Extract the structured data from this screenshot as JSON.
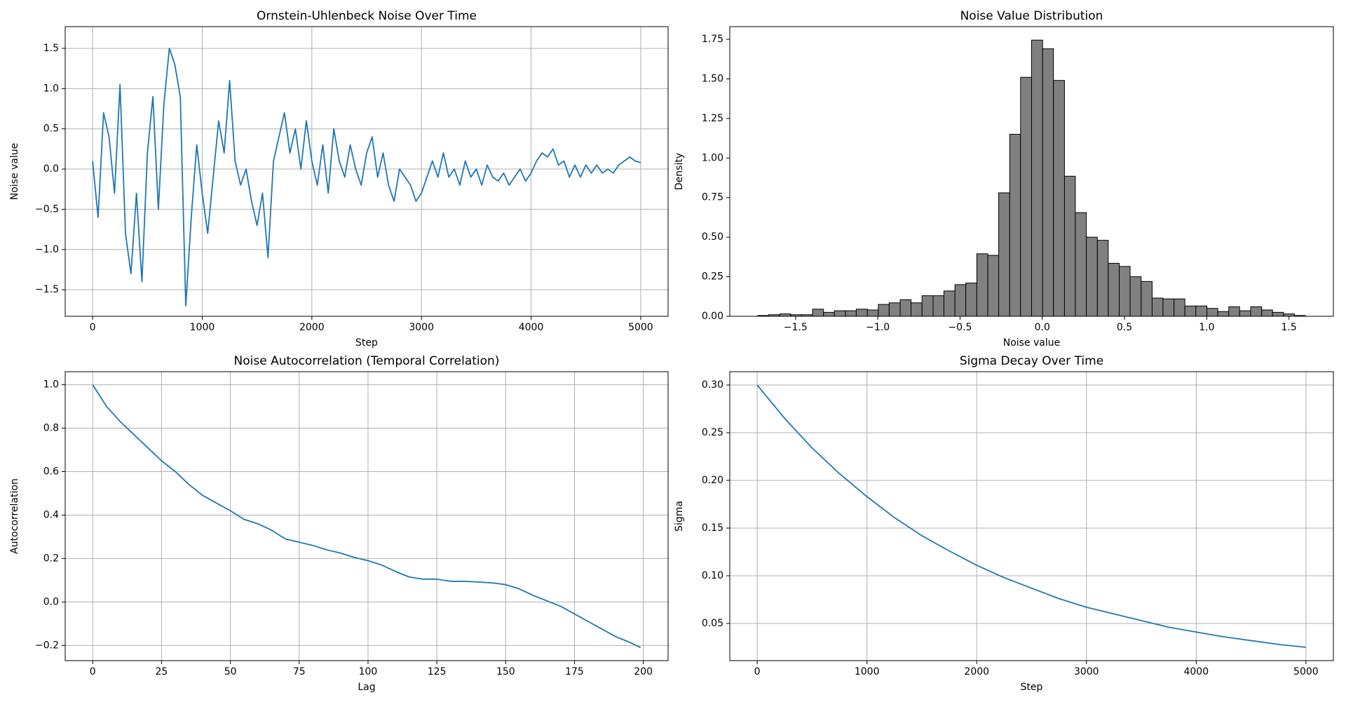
{
  "chart_data": [
    {
      "type": "line",
      "title": "Ornstein-Uhlenbeck Noise Over Time",
      "x_label": "Step",
      "y_label": "Noise value",
      "grid": true,
      "xlim": [
        -250,
        5250
      ],
      "ylim": [
        -1.83,
        1.77
      ],
      "xticks": [
        0,
        1000,
        2000,
        3000,
        4000,
        5000
      ],
      "yticks": [
        {
          "value": -1.5,
          "label": "−1.5"
        },
        {
          "value": -1.0,
          "label": "−1.0"
        },
        {
          "value": -0.5,
          "label": "−0.5"
        },
        {
          "value": 0,
          "label": "0.0"
        },
        0.5,
        {
          "value": 1.0,
          "label": "1.0"
        },
        1.5
      ],
      "x": [
        0,
        50,
        100,
        150,
        200,
        250,
        300,
        350,
        400,
        450,
        500,
        550,
        600,
        650,
        700,
        750,
        800,
        850,
        900,
        950,
        1000,
        1050,
        1100,
        1150,
        1200,
        1250,
        1300,
        1350,
        1400,
        1450,
        1500,
        1550,
        1600,
        1650,
        1700,
        1750,
        1800,
        1850,
        1900,
        1950,
        2000,
        2050,
        2100,
        2150,
        2200,
        2250,
        2300,
        2350,
        2400,
        2450,
        2500,
        2550,
        2600,
        2650,
        2700,
        2750,
        2800,
        2850,
        2900,
        2950,
        3000,
        3050,
        3100,
        3150,
        3200,
        3250,
        3300,
        3350,
        3400,
        3450,
        3500,
        3550,
        3600,
        3650,
        3700,
        3750,
        3800,
        3850,
        3900,
        3950,
        4000,
        4050,
        4100,
        4150,
        4200,
        4250,
        4300,
        4350,
        4400,
        4450,
        4500,
        4550,
        4600,
        4650,
        4700,
        4750,
        4800,
        4850,
        4900,
        4950,
        5000
      ],
      "series": [
        {
          "color": "#1f77b4",
          "values": [
            0.1,
            -0.6,
            0.7,
            0.4,
            -0.3,
            1.05,
            -0.8,
            -1.3,
            -0.3,
            -1.4,
            0.2,
            0.9,
            -0.5,
            0.8,
            1.5,
            1.3,
            0.9,
            -1.7,
            -0.6,
            0.3,
            -0.3,
            -0.8,
            -0.1,
            0.6,
            0.2,
            1.1,
            0.1,
            -0.2,
            0.0,
            -0.4,
            -0.7,
            -0.3,
            -1.1,
            0.1,
            0.4,
            0.7,
            0.2,
            0.5,
            0.0,
            0.6,
            0.1,
            -0.2,
            0.3,
            -0.3,
            0.5,
            0.1,
            -0.1,
            0.3,
            0.0,
            -0.2,
            0.2,
            0.4,
            -0.1,
            0.2,
            -0.2,
            -0.4,
            0.0,
            -0.1,
            -0.2,
            -0.4,
            -0.3,
            -0.1,
            0.1,
            -0.1,
            0.2,
            -0.1,
            0.0,
            -0.2,
            0.1,
            -0.1,
            0.0,
            -0.2,
            0.05,
            -0.1,
            -0.15,
            -0.05,
            -0.2,
            -0.1,
            0.0,
            -0.15,
            -0.05,
            0.1,
            0.2,
            0.15,
            0.25,
            0.05,
            0.1,
            -0.1,
            0.05,
            -0.1,
            0.05,
            -0.05,
            0.05,
            -0.05,
            0.0,
            -0.05,
            0.05,
            0.1,
            0.15,
            0.1,
            0.08
          ]
        }
      ]
    },
    {
      "type": "histogram",
      "title": "Noise Value Distribution",
      "x_label": "Noise value",
      "y_label": "Density",
      "grid": false,
      "color": "#808080",
      "edgecolor": "#000000",
      "xlim": [
        -1.9,
        1.77
      ],
      "ylim": [
        0,
        1.83
      ],
      "xticks": [
        {
          "value": -1.5,
          "label": "−1.5"
        },
        {
          "value": -1.0,
          "label": "−1.0"
        },
        {
          "value": -0.5,
          "label": "−0.5"
        },
        {
          "value": 0,
          "label": "0.0"
        },
        0.5,
        {
          "value": 1.0,
          "label": "1.0"
        },
        1.5
      ],
      "yticks": [
        {
          "value": 0,
          "label": "0.00"
        },
        0.25,
        {
          "value": 0.5,
          "label": "0.50"
        },
        0.75,
        {
          "value": 1.0,
          "label": "1.00"
        },
        1.25,
        {
          "value": 1.5,
          "label": "1.50"
        },
        1.75
      ],
      "bins": [
        -1.73,
        -1.663,
        -1.597,
        -1.53,
        -1.464,
        -1.397,
        -1.33,
        -1.264,
        -1.197,
        -1.131,
        -1.064,
        -0.997,
        -0.931,
        -0.864,
        -0.798,
        -0.731,
        -0.664,
        -0.598,
        -0.531,
        -0.465,
        -0.398,
        -0.331,
        -0.265,
        -0.198,
        -0.132,
        -0.065,
        0.002,
        0.068,
        0.135,
        0.201,
        0.268,
        0.335,
        0.401,
        0.468,
        0.534,
        0.601,
        0.668,
        0.734,
        0.801,
        0.867,
        0.934,
        1.001,
        1.067,
        1.134,
        1.2,
        1.267,
        1.334,
        1.4,
        1.467,
        1.533,
        1.6
      ],
      "values": [
        0.005,
        0.01,
        0.015,
        0.01,
        0.01,
        0.045,
        0.025,
        0.035,
        0.035,
        0.045,
        0.04,
        0.075,
        0.085,
        0.105,
        0.085,
        0.13,
        0.13,
        0.16,
        0.2,
        0.21,
        0.395,
        0.385,
        0.78,
        1.15,
        1.51,
        1.745,
        1.69,
        1.49,
        0.885,
        0.655,
        0.5,
        0.48,
        0.335,
        0.315,
        0.25,
        0.22,
        0.115,
        0.11,
        0.11,
        0.065,
        0.065,
        0.05,
        0.03,
        0.06,
        0.035,
        0.06,
        0.04,
        0.025,
        0.015,
        0.005
      ]
    },
    {
      "type": "line",
      "title": "Noise Autocorrelation (Temporal Correlation)",
      "x_label": "Lag",
      "y_label": "Autocorrelation",
      "grid": true,
      "xlim": [
        -10,
        209
      ],
      "ylim": [
        -0.27,
        1.06
      ],
      "xticks": [
        0,
        25,
        50,
        75,
        100,
        125,
        150,
        175,
        200
      ],
      "yticks": [
        {
          "value": -0.2,
          "label": "−0.2"
        },
        {
          "value": 0,
          "label": "0.0"
        },
        0.2,
        0.4,
        0.6,
        0.8,
        {
          "value": 1.0,
          "label": "1.0"
        }
      ],
      "x": [
        0,
        5,
        10,
        15,
        20,
        25,
        30,
        35,
        40,
        45,
        50,
        55,
        60,
        65,
        70,
        75,
        80,
        85,
        90,
        95,
        100,
        105,
        110,
        115,
        120,
        125,
        130,
        135,
        140,
        145,
        150,
        155,
        160,
        165,
        170,
        175,
        180,
        185,
        190,
        195,
        199
      ],
      "series": [
        {
          "color": "#1f77b4",
          "values": [
            1.0,
            0.9,
            0.83,
            0.77,
            0.71,
            0.65,
            0.6,
            0.54,
            0.49,
            0.455,
            0.42,
            0.38,
            0.36,
            0.33,
            0.29,
            0.275,
            0.26,
            0.24,
            0.225,
            0.205,
            0.19,
            0.17,
            0.14,
            0.115,
            0.105,
            0.105,
            0.095,
            0.095,
            0.092,
            0.088,
            0.08,
            0.06,
            0.03,
            0.005,
            -0.02,
            -0.055,
            -0.09,
            -0.125,
            -0.16,
            -0.185,
            -0.21
          ]
        }
      ]
    },
    {
      "type": "line",
      "title": "Sigma Decay Over Time",
      "x_label": "Step",
      "y_label": "Sigma",
      "grid": true,
      "xlim": [
        -250,
        5250
      ],
      "ylim": [
        0.011,
        0.314
      ],
      "xticks": [
        0,
        1000,
        2000,
        3000,
        4000,
        5000
      ],
      "yticks": [
        0.05,
        {
          "value": 0.1,
          "label": "0.10"
        },
        0.15,
        {
          "value": 0.2,
          "label": "0.20"
        },
        0.25,
        {
          "value": 0.3,
          "label": "0.30"
        }
      ],
      "x": [
        0,
        250,
        500,
        750,
        1000,
        1250,
        1500,
        1750,
        2000,
        2250,
        2500,
        2750,
        3000,
        3250,
        3500,
        3750,
        4000,
        4250,
        4500,
        4750,
        5000
      ],
      "series": [
        {
          "color": "#1f77b4",
          "values": [
            0.3,
            0.265,
            0.234,
            0.207,
            0.183,
            0.161,
            0.142,
            0.126,
            0.111,
            0.098,
            0.087,
            0.076,
            0.067,
            0.06,
            0.053,
            0.046,
            0.041,
            0.036,
            0.032,
            0.028,
            0.025
          ]
        }
      ]
    }
  ]
}
